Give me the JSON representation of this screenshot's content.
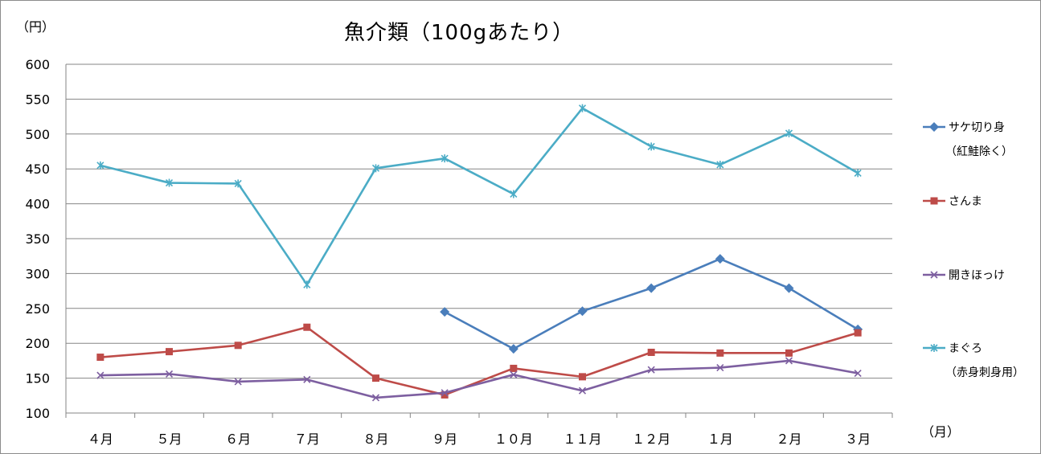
{
  "chart_data": {
    "type": "line",
    "title": "魚介類（100gあたり）",
    "ylabel": "（円）",
    "xlabel": "（月）",
    "ylim": [
      100,
      600
    ],
    "yticks": [
      100,
      150,
      200,
      250,
      300,
      350,
      400,
      450,
      500,
      550,
      600
    ],
    "categories": [
      "４月",
      "５月",
      "６月",
      "７月",
      "８月",
      "９月",
      "１０月",
      "１１月",
      "１２月",
      "１月",
      "２月",
      "３月"
    ],
    "grid": true,
    "legend_position": "right",
    "series": [
      {
        "name": "サケ切り身",
        "name_sub": "（紅鮭除く）",
        "color": "#4a7ebb",
        "marker": "diamond",
        "values": [
          null,
          null,
          null,
          null,
          null,
          245,
          192,
          246,
          279,
          321,
          279,
          220
        ]
      },
      {
        "name": "さんま",
        "name_sub": "",
        "color": "#be4b48",
        "marker": "square",
        "values": [
          180,
          188,
          197,
          223,
          150,
          126,
          164,
          152,
          187,
          186,
          186,
          215
        ]
      },
      {
        "name": "開きほっけ",
        "name_sub": "",
        "color": "#7d5fa0",
        "marker": "x",
        "values": [
          154,
          156,
          145,
          148,
          122,
          129,
          155,
          132,
          162,
          165,
          175,
          157
        ]
      },
      {
        "name": "まぐろ",
        "name_sub": "（赤身刺身用）",
        "color": "#4bacc6",
        "marker": "star",
        "values": [
          455,
          430,
          429,
          284,
          451,
          465,
          414,
          537,
          482,
          456,
          501,
          444
        ]
      }
    ]
  }
}
